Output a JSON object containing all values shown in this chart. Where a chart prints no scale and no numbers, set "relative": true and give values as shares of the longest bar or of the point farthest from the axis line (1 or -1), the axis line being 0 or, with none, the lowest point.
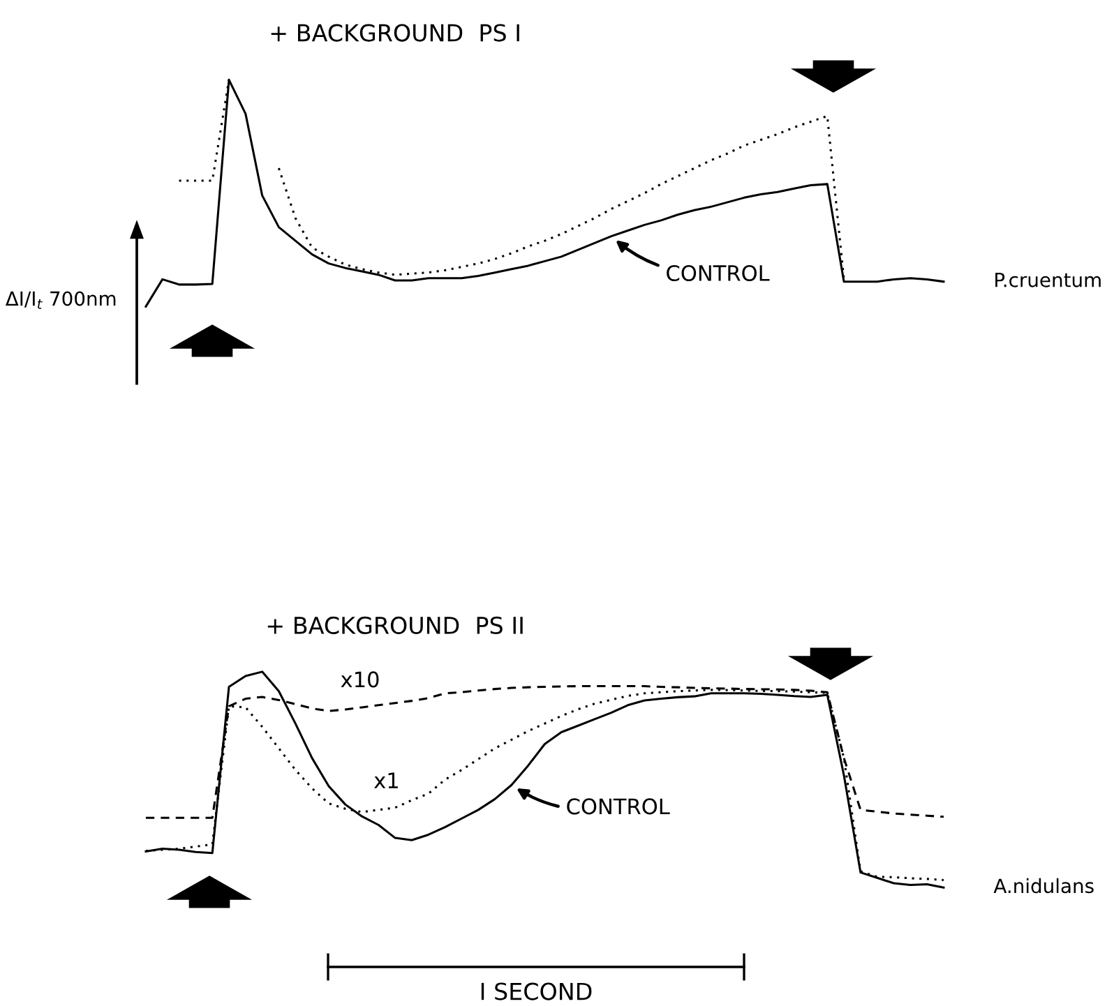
{
  "chart_data": [
    {
      "type": "line",
      "title": "+ BACKGROUND  PS I",
      "relative": true,
      "tick_labels": false,
      "ylabel": "ΔI/I$_{t}$ 700nm",
      "categories": [
        null,
        null,
        null,
        null,
        null,
        null,
        null,
        null,
        null,
        null,
        null,
        null,
        null,
        null,
        null,
        null,
        null,
        null,
        null,
        null,
        null,
        null,
        null,
        null,
        null,
        null,
        null,
        null,
        null,
        null,
        null,
        null,
        null,
        null,
        null,
        null,
        null,
        null,
        null,
        null,
        null,
        null,
        null,
        null,
        null,
        null,
        null,
        null,
        null,
        null,
        null
      ],
      "annotations": [
        "CONTROL",
        "P.cruentum"
      ],
      "series": [
        {
          "color": "#000000",
          "line_style": "solid",
          "values": [
            null,
            0,
            0.12,
            0.097,
            0.097,
            0.1,
            1.0,
            0.85,
            0.49,
            0.35,
            0.29,
            0.23,
            0.19,
            0.17,
            0.155,
            0.14,
            0.115,
            0.115,
            0.125,
            0.125,
            0.125,
            0.135,
            0.15,
            0.165,
            0.18,
            0.2,
            0.22,
            0.25,
            0.28,
            0.31,
            0.335,
            0.36,
            0.38,
            0.405,
            0.425,
            0.44,
            0.46,
            0.48,
            0.495,
            0.505,
            0.52,
            0.535,
            0.54,
            0.11,
            0.11,
            0.11,
            0.12,
            0.125,
            0.12,
            0.11,
            null
          ]
        },
        {
          "color": "#000000",
          "line_style": "dotted",
          "values": [
            null,
            null,
            null,
            0.555,
            0.555,
            0.555,
            1.0,
            null,
            null,
            0.61,
            0.39,
            0.26,
            0.22,
            0.185,
            0.165,
            0.15,
            0.14,
            0.145,
            0.15,
            0.16,
            0.175,
            0.19,
            0.21,
            0.235,
            0.265,
            0.29,
            0.32,
            0.355,
            0.39,
            0.43,
            0.465,
            0.5,
            0.54,
            0.575,
            0.61,
            0.645,
            0.675,
            0.71,
            0.735,
            0.76,
            0.79,
            0.815,
            0.84,
            0.12,
            null,
            null,
            null,
            null,
            null,
            null,
            null
          ]
        }
      ]
    },
    {
      "type": "line",
      "title": "+ BACKGROUND  PS II",
      "relative": true,
      "tick_labels": false,
      "xlabel": "I SECOND",
      "categories": [
        null,
        null,
        null,
        null,
        null,
        null,
        null,
        null,
        null,
        null,
        null,
        null,
        null,
        null,
        null,
        null,
        null,
        null,
        null,
        null,
        null,
        null,
        null,
        null,
        null,
        null,
        null,
        null,
        null,
        null,
        null,
        null,
        null,
        null,
        null,
        null,
        null,
        null,
        null,
        null,
        null,
        null,
        null,
        null,
        null,
        null,
        null,
        null,
        null
      ],
      "annotations": [
        "CONTROL",
        "A.nidulans"
      ],
      "series": [
        {
          "color": "#000000",
          "line_style": "solid",
          "values": [
            0.167,
            0.18,
            0.175,
            0.165,
            0.16,
            0.93,
            0.98,
            1.0,
            0.91,
            0.76,
            0.6,
            0.47,
            0.385,
            0.33,
            0.29,
            0.23,
            0.22,
            0.245,
            0.28,
            0.32,
            0.36,
            0.41,
            0.475,
            0.565,
            0.665,
            0.72,
            0.75,
            0.78,
            0.81,
            0.845,
            0.867,
            0.875,
            0.882,
            0.886,
            0.9,
            0.9,
            0.9,
            0.898,
            0.893,
            0.887,
            0.883,
            0.893,
            0.52,
            0.07,
            0.045,
            0.02,
            0.012,
            0.015,
            0
          ]
        },
        {
          "name": "x10",
          "color": "#000000",
          "line_style": "dashed",
          "values": [
            0.323,
            0.323,
            0.323,
            0.323,
            0.323,
            0.84,
            0.875,
            0.883,
            0.869,
            0.85,
            0.83,
            0.818,
            0.825,
            0.835,
            0.845,
            0.855,
            0.865,
            0.878,
            0.9,
            0.905,
            0.913,
            0.92,
            0.925,
            0.928,
            0.93,
            0.932,
            0.933,
            0.933,
            0.933,
            0.933,
            0.933,
            0.93,
            0.928,
            0.925,
            0.923,
            0.922,
            0.92,
            0.919,
            0.918,
            0.916,
            0.912,
            0.905,
            0.6,
            0.36,
            0.352,
            0.343,
            0.338,
            0.333,
            0.328
          ]
        },
        {
          "name": "x1",
          "color": "#000000",
          "line_style": "dotted",
          "values": [
            0.17,
            0.175,
            0.18,
            0.19,
            0.2,
            0.84,
            0.835,
            0.745,
            0.645,
            0.545,
            0.46,
            0.39,
            0.365,
            0.35,
            0.36,
            0.37,
            0.405,
            0.435,
            0.5,
            0.545,
            0.595,
            0.645,
            0.685,
            0.725,
            0.76,
            0.795,
            0.826,
            0.852,
            0.87,
            0.888,
            0.9,
            0.905,
            0.91,
            0.913,
            0.916,
            0.915,
            0.913,
            0.911,
            0.91,
            0.908,
            0.905,
            0.902,
            0.6,
            0.075,
            0.05,
            0.048,
            0.043,
            0.04,
            0.035
          ]
        }
      ]
    }
  ]
}
